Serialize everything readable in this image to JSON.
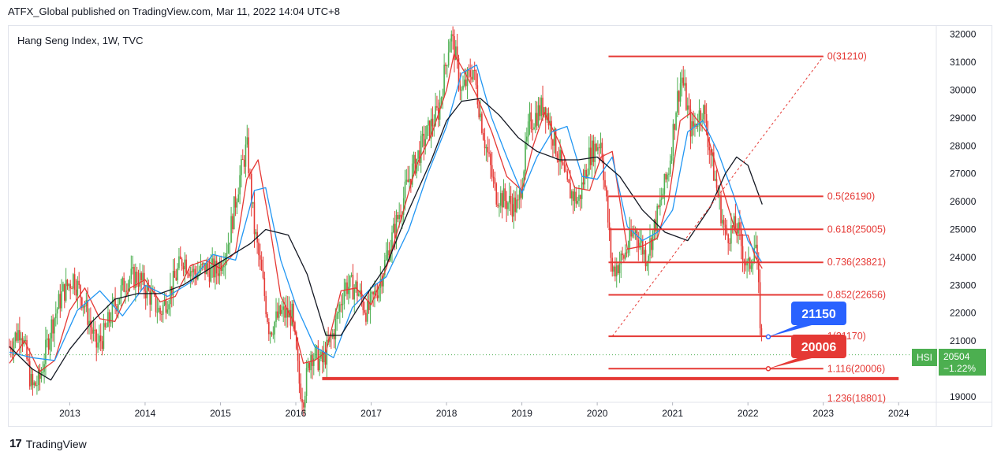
{
  "publisher_line": "ATFX_Global published on TradingView.com, Mar 11, 2022 14:04 UTC+8",
  "symbol_title": "Hang Seng Index, 1W, TVC",
  "footer_brand": "TradingView",
  "footer_icon": "tradingview-logo-icon",
  "colors": {
    "fib_line": "#e53935",
    "ma_red": "#e53935",
    "ma_blue": "#2196f3",
    "ma_black": "#131722",
    "candle_up": "#4caf50",
    "candle_down": "#e53935",
    "callout_blue": "#2962ff",
    "callout_red": "#e53935",
    "price_badge": "#4caf50"
  },
  "chart_data": {
    "type": "line",
    "title": "Hang Seng Index, 1W, TVC",
    "x_ticks": [
      "2013",
      "2014",
      "2015",
      "2016",
      "2017",
      "2018",
      "2019",
      "2020",
      "2021",
      "2022",
      "2023",
      "2024"
    ],
    "y_ticks": [
      19000,
      20000,
      21000,
      22000,
      23000,
      24000,
      25000,
      26000,
      27000,
      28000,
      29000,
      30000,
      31000,
      32000
    ],
    "ylim": [
      18800,
      32300
    ],
    "xlim": [
      2012.2,
      2024.5
    ],
    "series": [
      {
        "key": "price",
        "x": [
          2012.2,
          2012.35,
          2012.5,
          2012.6,
          2012.75,
          2012.9,
          2013.05,
          2013.2,
          2013.35,
          2013.45,
          2013.6,
          2013.75,
          2013.9,
          2014.05,
          2014.2,
          2014.35,
          2014.5,
          2014.65,
          2014.8,
          2014.95,
          2015.1,
          2015.25,
          2015.35,
          2015.45,
          2015.55,
          2015.65,
          2015.8,
          2015.95,
          2016.05,
          2016.1,
          2016.2,
          2016.35,
          2016.5,
          2016.65,
          2016.8,
          2016.95,
          2017.1,
          2017.3,
          2017.5,
          2017.7,
          2017.9,
          2018.05,
          2018.1,
          2018.2,
          2018.35,
          2018.5,
          2018.65,
          2018.8,
          2018.95,
          2019.1,
          2019.3,
          2019.45,
          2019.6,
          2019.75,
          2019.9,
          2020.05,
          2020.2,
          2020.35,
          2020.5,
          2020.65,
          2020.8,
          2020.95,
          2021.05,
          2021.12,
          2021.25,
          2021.4,
          2021.55,
          2021.7,
          2021.85,
          2022.0,
          2022.1,
          2022.19
        ],
        "values": [
          20800,
          21500,
          19300,
          19600,
          21500,
          22700,
          23300,
          22300,
          20800,
          21200,
          22300,
          23200,
          23300,
          22700,
          22000,
          22900,
          24000,
          23400,
          23600,
          23500,
          24500,
          26800,
          28000,
          25000,
          23300,
          21400,
          22000,
          21900,
          19400,
          19000,
          20600,
          20200,
          21300,
          23000,
          22900,
          22000,
          23000,
          24900,
          26800,
          28200,
          29300,
          32000,
          31500,
          29900,
          30800,
          28300,
          26300,
          26000,
          25800,
          28800,
          29500,
          28000,
          26500,
          26000,
          27700,
          28200,
          23500,
          24000,
          25000,
          24000,
          25500,
          27200,
          29500,
          30500,
          28500,
          29400,
          27000,
          24800,
          25100,
          23500,
          24600,
          20500
        ]
      },
      {
        "key": "ma_fast_red",
        "x": [
          2012.2,
          2012.4,
          2012.6,
          2012.8,
          2013.0,
          2013.2,
          2013.4,
          2013.6,
          2013.8,
          2014.0,
          2014.2,
          2014.4,
          2014.6,
          2014.8,
          2015.0,
          2015.2,
          2015.35,
          2015.5,
          2015.65,
          2015.8,
          2015.95,
          2016.1,
          2016.25,
          2016.4,
          2016.6,
          2016.8,
          2017.0,
          2017.2,
          2017.4,
          2017.6,
          2017.8,
          2018.0,
          2018.1,
          2018.25,
          2018.4,
          2018.6,
          2018.8,
          2019.0,
          2019.15,
          2019.3,
          2019.5,
          2019.7,
          2019.9,
          2020.05,
          2020.2,
          2020.4,
          2020.6,
          2020.8,
          2020.95,
          2021.1,
          2021.25,
          2021.45,
          2021.65,
          2021.85,
          2022.0,
          2022.1,
          2022.19
        ],
        "values": [
          20200,
          21000,
          19900,
          20300,
          22100,
          22900,
          21800,
          21700,
          22900,
          23200,
          22400,
          22600,
          23700,
          23900,
          23600,
          24200,
          26800,
          27500,
          25200,
          22600,
          21800,
          20200,
          20300,
          20600,
          22800,
          22900,
          22300,
          23600,
          25400,
          27300,
          28400,
          30000,
          31300,
          30600,
          29800,
          28500,
          26900,
          26400,
          28000,
          29200,
          28100,
          26500,
          26400,
          27600,
          27800,
          24300,
          24400,
          24700,
          26100,
          28900,
          29200,
          28500,
          26600,
          24800,
          24800,
          24000,
          23600
        ]
      },
      {
        "key": "ma_mid_blue",
        "x": [
          2012.2,
          2012.5,
          2012.8,
          2013.1,
          2013.4,
          2013.7,
          2014.0,
          2014.3,
          2014.6,
          2014.9,
          2015.2,
          2015.45,
          2015.6,
          2015.8,
          2016.0,
          2016.25,
          2016.5,
          2016.75,
          2017.0,
          2017.2,
          2017.5,
          2017.75,
          2018.0,
          2018.2,
          2018.4,
          2018.6,
          2018.8,
          2019.0,
          2019.2,
          2019.4,
          2019.6,
          2019.8,
          2020.0,
          2020.2,
          2020.4,
          2020.6,
          2020.8,
          2021.0,
          2021.2,
          2021.4,
          2021.6,
          2021.8,
          2022.0,
          2022.19
        ],
        "values": [
          20600,
          20400,
          20300,
          22100,
          22800,
          21900,
          23000,
          22600,
          23100,
          24100,
          23900,
          26400,
          26500,
          23900,
          22300,
          20800,
          20400,
          22200,
          22900,
          23300,
          25000,
          27000,
          28700,
          30600,
          30900,
          29000,
          27600,
          26300,
          27600,
          28500,
          28700,
          26900,
          26800,
          27600,
          25100,
          24600,
          24900,
          25700,
          28500,
          28900,
          27800,
          26300,
          24600,
          23800
        ]
      },
      {
        "key": "ma_slow_black",
        "x": [
          2012.2,
          2012.5,
          2012.75,
          2013.0,
          2013.3,
          2013.6,
          2013.9,
          2014.2,
          2014.5,
          2014.8,
          2015.1,
          2015.4,
          2015.6,
          2015.9,
          2016.15,
          2016.4,
          2016.6,
          2016.9,
          2017.2,
          2017.5,
          2017.8,
          2018.0,
          2018.2,
          2018.45,
          2018.7,
          2018.95,
          2019.2,
          2019.5,
          2019.75,
          2020.0,
          2020.3,
          2020.6,
          2020.9,
          2021.2,
          2021.5,
          2021.7,
          2021.85,
          2022.0,
          2022.19
        ],
        "values": [
          20800,
          20000,
          19600,
          20700,
          21700,
          22500,
          22700,
          22700,
          23000,
          23500,
          24000,
          24500,
          25000,
          24800,
          23400,
          21200,
          21200,
          22500,
          23700,
          25700,
          27500,
          28900,
          29600,
          29700,
          29100,
          28300,
          27800,
          27500,
          27500,
          27600,
          26900,
          25700,
          24900,
          24600,
          25800,
          27000,
          27600,
          27300,
          25900
        ]
      }
    ],
    "fib_levels": [
      {
        "label": "0(31210)",
        "value": 31210
      },
      {
        "label": "0.5(26190)",
        "value": 26190
      },
      {
        "label": "0.618(25005)",
        "value": 25005
      },
      {
        "label": "0.736(23821)",
        "value": 23821
      },
      {
        "label": "0.852(22656)",
        "value": 22656
      },
      {
        "label": "1(21170)",
        "value": 21170
      },
      {
        "label": "1.116(20006)",
        "value": 20006
      },
      {
        "label": "1.236(18801)",
        "value": 18801
      }
    ],
    "fib_range": {
      "x_start": 2020.15,
      "x_end": 2023.0
    },
    "fib_diagonal": {
      "x1": 2020.2,
      "y1": 21170,
      "x2": 2023.0,
      "y2": 31210
    },
    "support_line": {
      "x1": 2016.35,
      "x2": 2024.0,
      "value": 19650
    },
    "current_price_line": 20504,
    "callouts": [
      {
        "label": "21150",
        "value": 21150,
        "x": 2022.27
      },
      {
        "label": "20006",
        "value": 20006,
        "x": 2022.27
      }
    ],
    "price_badge": {
      "symbol": "HSI",
      "price": "20504",
      "change": "−1.22%"
    }
  }
}
